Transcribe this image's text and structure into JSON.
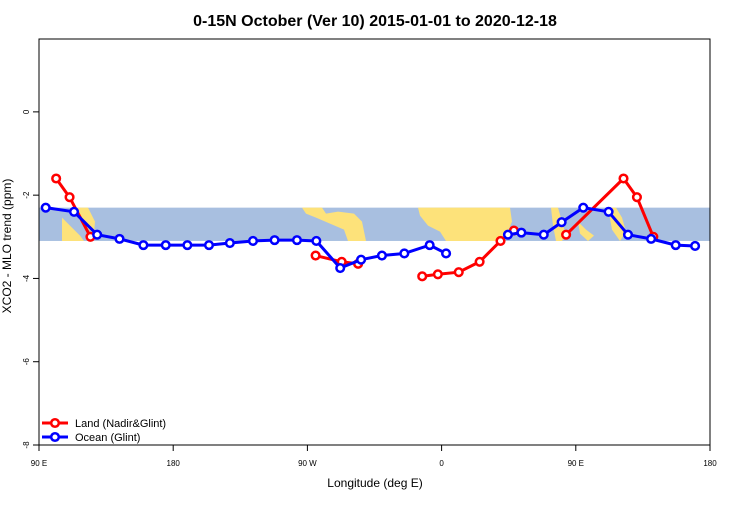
{
  "chart_data": {
    "type": "line",
    "title": "0-15N October (Ver 10)   2015-01-01 to 2020-12-18",
    "xlabel": "Longitude (deg E)",
    "ylabel": "XCO2 - MLO trend (ppm)",
    "xlim": [
      90,
      540
    ],
    "ylim": [
      -8,
      1.75
    ],
    "x_ticks": [
      {
        "value": 90,
        "label": "90 E"
      },
      {
        "value": 180,
        "label": "180"
      },
      {
        "value": 270,
        "label": "90 W"
      },
      {
        "value": 360,
        "label": "0"
      },
      {
        "value": 450,
        "label": "90 E"
      },
      {
        "value": 540,
        "label": "180"
      }
    ],
    "y_ticks": [
      {
        "value": 0,
        "label": "0"
      },
      {
        "value": -2,
        "label": "-2"
      },
      {
        "value": -4,
        "label": "-4"
      },
      {
        "value": -6,
        "label": "-6"
      },
      {
        "value": -8,
        "label": "-8"
      }
    ],
    "band": {
      "ymin": -3.1,
      "ymax": -2.3,
      "ocean_color": "#a8bfe0",
      "land_color": "#fde27a"
    },
    "grid": false,
    "legend_position": "bottom-left",
    "series": [
      {
        "name": "Land (Nadir&Glint)",
        "color": "#ff0000",
        "segments": [
          [
            [
              101.5,
              -1.6
            ],
            [
              110.5,
              -2.05
            ],
            [
              124.5,
              -3.0
            ]
          ],
          [
            [
              275.5,
              -3.45
            ],
            [
              293,
              -3.6
            ],
            [
              304,
              -3.65
            ]
          ],
          [
            [
              347,
              -3.95
            ],
            [
              357.5,
              -3.9
            ],
            [
              371.5,
              -3.85
            ],
            [
              385.5,
              -3.6
            ],
            [
              399.5,
              -3.1
            ],
            [
              408.5,
              -2.85
            ]
          ],
          [
            [
              443.5,
              -2.95
            ],
            [
              482,
              -1.6
            ],
            [
              491,
              -2.05
            ],
            [
              502,
              -3.0
            ]
          ]
        ]
      },
      {
        "name": "Ocean (Glint)",
        "color": "#0000ff",
        "segments": [
          [
            [
              94.5,
              -2.3
            ],
            [
              113.5,
              -2.4
            ],
            [
              129,
              -2.95
            ],
            [
              144,
              -3.05
            ],
            [
              160,
              -3.2
            ],
            [
              175,
              -3.2
            ],
            [
              189.5,
              -3.2
            ],
            [
              204,
              -3.2
            ],
            [
              218,
              -3.15
            ],
            [
              233.5,
              -3.1
            ],
            [
              248,
              -3.08
            ],
            [
              263,
              -3.08
            ],
            [
              276,
              -3.1
            ],
            [
              292,
              -3.75
            ],
            [
              306,
              -3.55
            ],
            [
              320,
              -3.45
            ],
            [
              335,
              -3.4
            ],
            [
              352,
              -3.2
            ],
            [
              363,
              -3.4
            ]
          ],
          [
            [
              404.5,
              -2.95
            ],
            [
              413.5,
              -2.9
            ],
            [
              428.5,
              -2.95
            ],
            [
              440.5,
              -2.65
            ],
            [
              455,
              -2.3
            ],
            [
              472,
              -2.4
            ],
            [
              485,
              -2.95
            ],
            [
              500.5,
              -3.05
            ],
            [
              517,
              -3.2
            ],
            [
              530,
              -3.22
            ]
          ]
        ]
      }
    ]
  }
}
